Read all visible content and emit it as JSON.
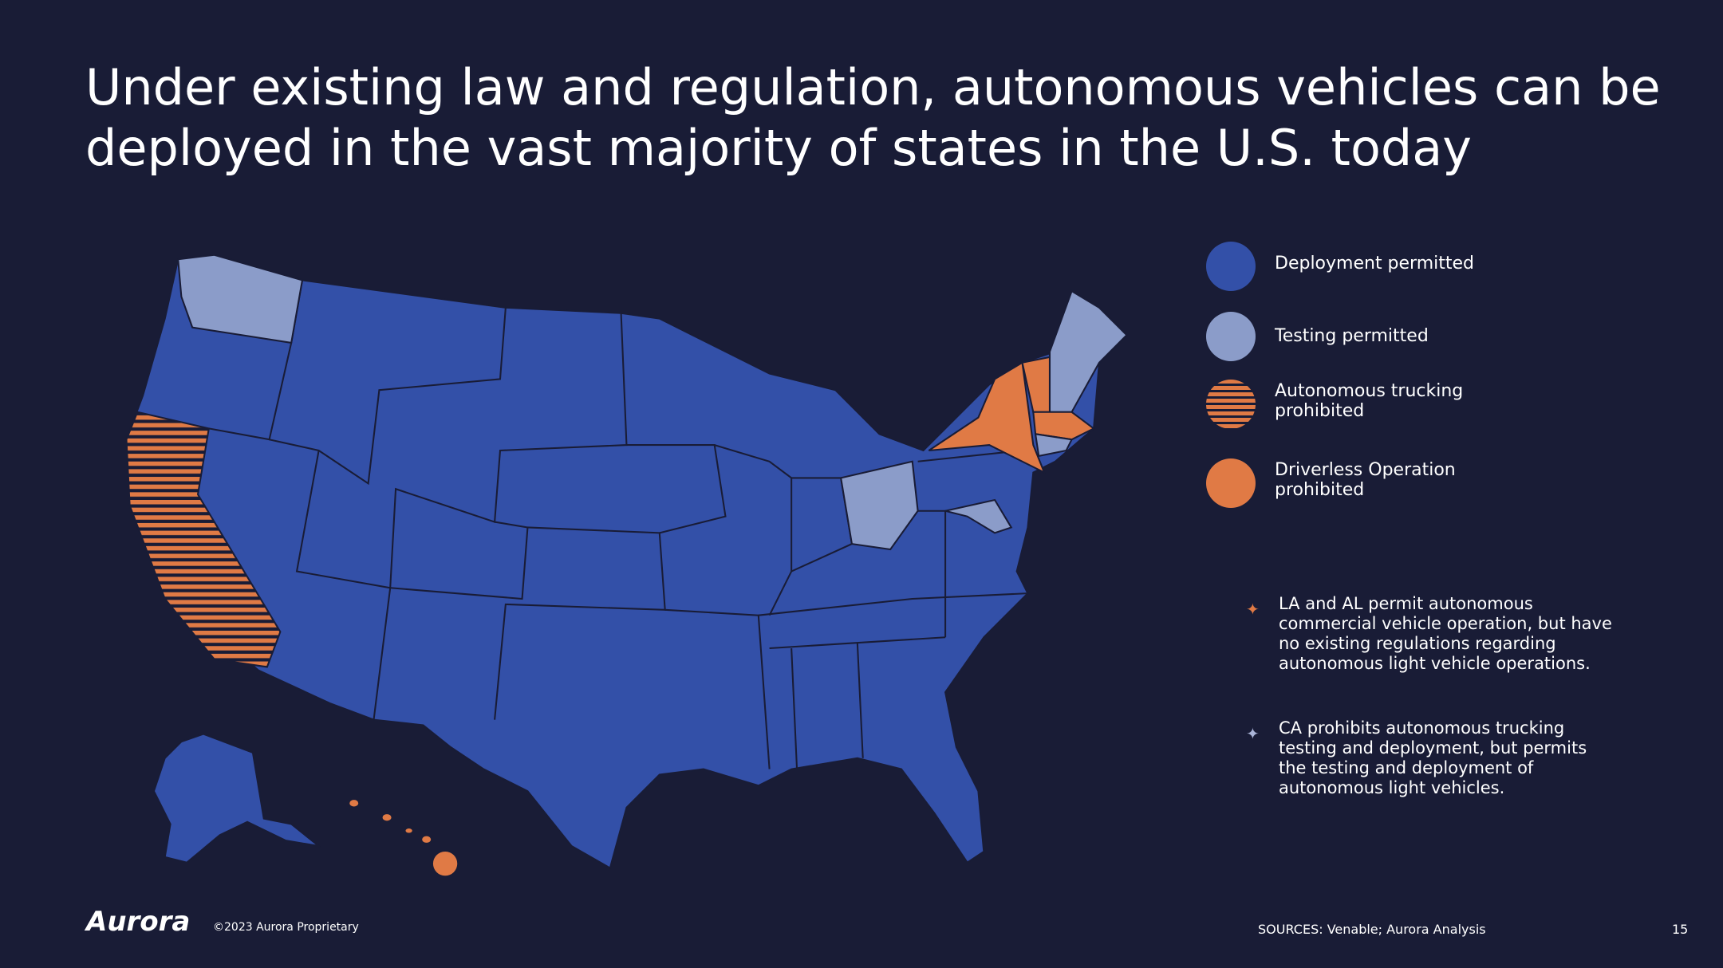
{
  "title": "Under existing law and regulation, autonomous vehicles can be deployed in the vast majority of states in the U.S. today",
  "legend": [
    "Deployment permitted",
    "Testing permitted",
    "Autonomous trucking prohibited",
    "Driverless Operation prohibited"
  ],
  "notes": [
    "LA and AL permit autonomous commercial vehicle operation, but have no existing regulations regarding autonomous light vehicle operations.",
    "CA prohibits autonomous trucking testing and deployment, but permits the testing and deployment of autonomous light vehicles."
  ],
  "footer": {
    "logo": "Aurora",
    "copyright": "©2023 Aurora Proprietary",
    "sources": "SOURCES: Venable; Aurora Analysis",
    "page": "15"
  }
}
